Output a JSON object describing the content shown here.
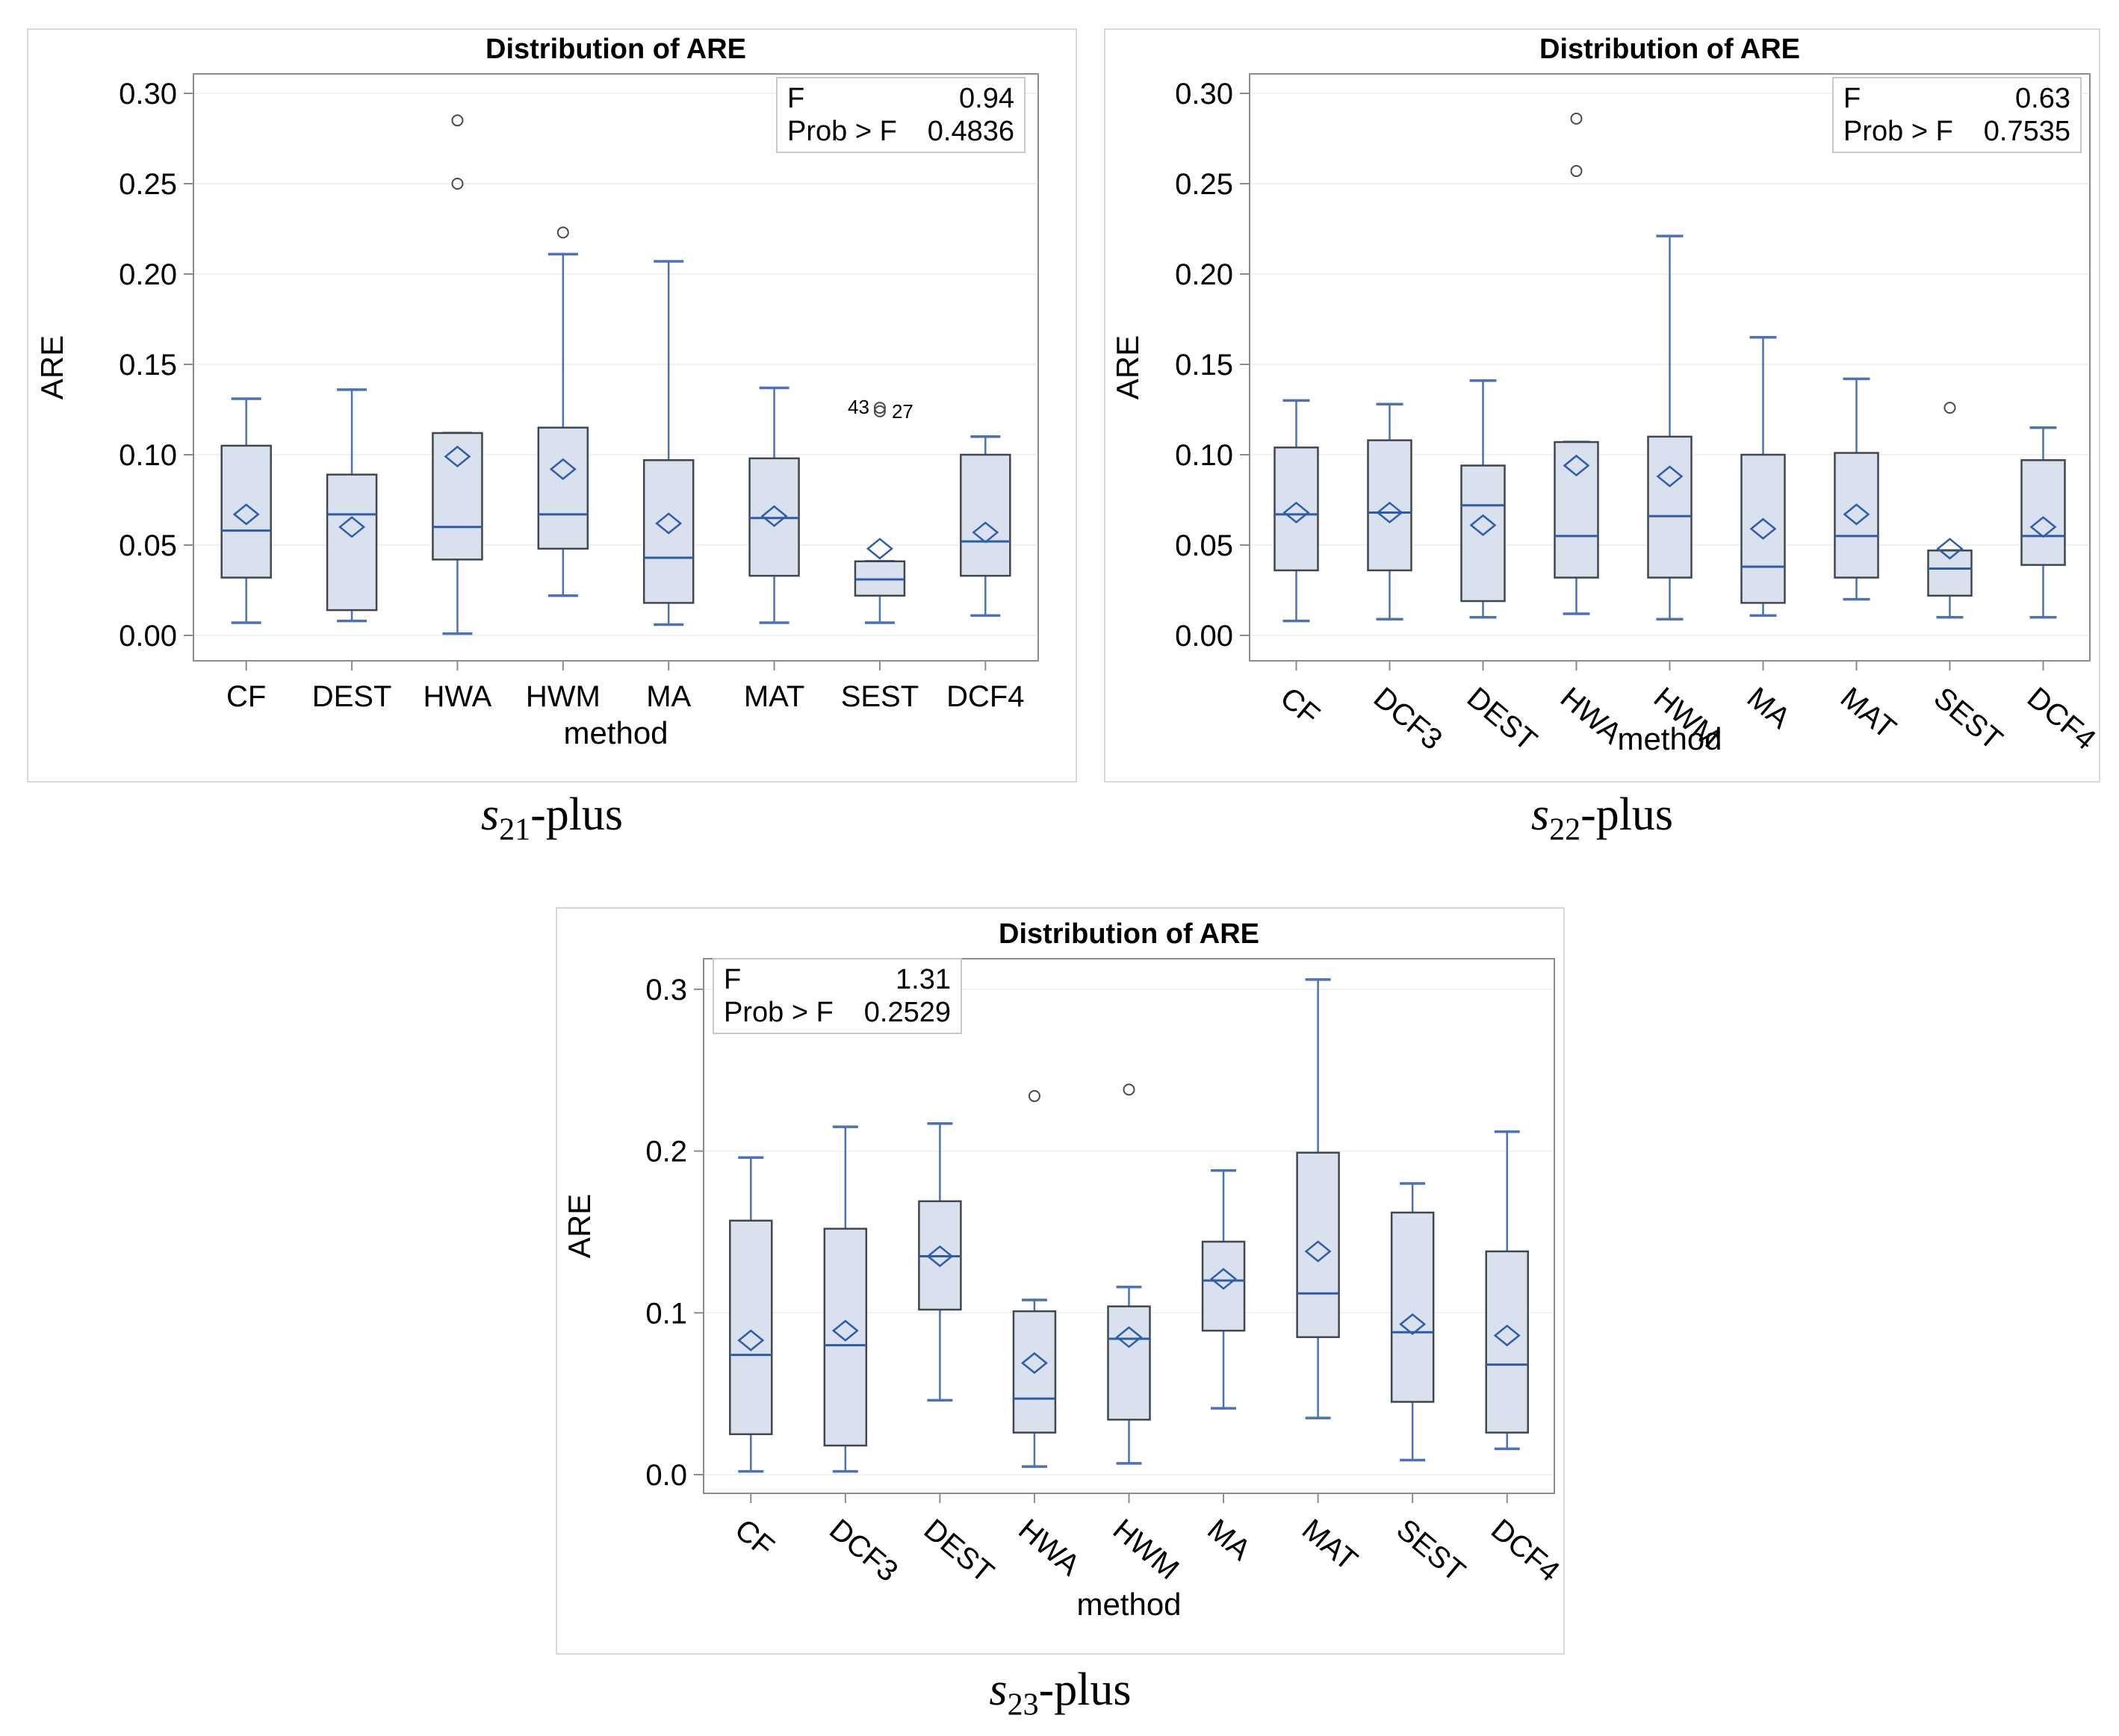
{
  "figure": {
    "panels": [
      {
        "chart_index": 0,
        "caption": {
          "s": "s",
          "sub": "21",
          "rest": "-plus"
        }
      },
      {
        "chart_index": 1,
        "caption": {
          "s": "s",
          "sub": "22",
          "rest": "-plus"
        }
      },
      {
        "chart_index": 2,
        "caption": {
          "s": "s",
          "sub": "23",
          "rest": "-plus"
        }
      }
    ]
  },
  "chart_data": [
    {
      "type": "box",
      "title": "Distribution of ARE",
      "xlabel": "method",
      "ylabel": "ARE",
      "ylim": [
        0,
        0.31
      ],
      "grid": true,
      "x_tick_rotation": 0,
      "yticks": [
        {
          "value": 0.3,
          "label": "0.30"
        },
        {
          "value": 0.25,
          "label": "0.25"
        },
        {
          "value": 0.2,
          "label": "0.20"
        },
        {
          "value": 0.15,
          "label": "0.15"
        },
        {
          "value": 0.1,
          "label": "0.10"
        },
        {
          "value": 0.05,
          "label": "0.05"
        },
        {
          "value": 0.0,
          "label": "0.00"
        }
      ],
      "stats": {
        "position": "top-right",
        "rows": [
          [
            "F",
            "0.94"
          ],
          [
            "Prob > F",
            "0.4836"
          ]
        ]
      },
      "categories": [
        "CF",
        "DEST",
        "HWA",
        "HWM",
        "MA",
        "MAT",
        "SEST",
        "DCF4"
      ],
      "boxes": [
        {
          "category": "CF",
          "whisker_low": 0.007,
          "q1": 0.032,
          "median": 0.058,
          "q3": 0.105,
          "whisker_high": 0.131,
          "mean": 0.067,
          "outliers": []
        },
        {
          "category": "DEST",
          "whisker_low": 0.008,
          "q1": 0.014,
          "median": 0.067,
          "q3": 0.089,
          "whisker_high": 0.136,
          "mean": 0.06,
          "outliers": []
        },
        {
          "category": "HWA",
          "whisker_low": 0.001,
          "q1": 0.042,
          "median": 0.06,
          "q3": 0.112,
          "whisker_high": 0.112,
          "mean": 0.099,
          "outliers": [
            0.285,
            0.25
          ]
        },
        {
          "category": "HWM",
          "whisker_low": 0.022,
          "q1": 0.048,
          "median": 0.067,
          "q3": 0.115,
          "whisker_high": 0.211,
          "mean": 0.092,
          "outliers": [
            0.223
          ]
        },
        {
          "category": "MA",
          "whisker_low": 0.006,
          "q1": 0.018,
          "median": 0.043,
          "q3": 0.097,
          "whisker_high": 0.207,
          "mean": 0.062,
          "outliers": []
        },
        {
          "category": "MAT",
          "whisker_low": 0.007,
          "q1": 0.033,
          "median": 0.065,
          "q3": 0.098,
          "whisker_high": 0.137,
          "mean": 0.066,
          "outliers": []
        },
        {
          "category": "SEST",
          "whisker_low": 0.007,
          "q1": 0.022,
          "median": 0.031,
          "q3": 0.041,
          "whisker_high": 0.041,
          "mean": 0.048,
          "outliers": [
            0.126,
            0.124
          ],
          "outlier_note_left": "43",
          "outlier_note_right": "27"
        },
        {
          "category": "DCF4",
          "whisker_low": 0.011,
          "q1": 0.033,
          "median": 0.052,
          "q3": 0.1,
          "whisker_high": 0.11,
          "mean": 0.057,
          "outliers": []
        }
      ]
    },
    {
      "type": "box",
      "title": "Distribution of ARE",
      "xlabel": "method",
      "ylabel": "ARE",
      "ylim": [
        0,
        0.31
      ],
      "grid": true,
      "x_tick_rotation": 40,
      "yticks": [
        {
          "value": 0.3,
          "label": "0.30"
        },
        {
          "value": 0.25,
          "label": "0.25"
        },
        {
          "value": 0.2,
          "label": "0.20"
        },
        {
          "value": 0.15,
          "label": "0.15"
        },
        {
          "value": 0.1,
          "label": "0.10"
        },
        {
          "value": 0.05,
          "label": "0.05"
        },
        {
          "value": 0.0,
          "label": "0.00"
        }
      ],
      "stats": {
        "position": "top-right",
        "rows": [
          [
            "F",
            "0.63"
          ],
          [
            "Prob > F",
            "0.7535"
          ]
        ]
      },
      "categories": [
        "CF",
        "DCF3",
        "DEST",
        "HWA",
        "HWM",
        "MA",
        "MAT",
        "SEST",
        "DCF4"
      ],
      "boxes": [
        {
          "category": "CF",
          "whisker_low": 0.008,
          "q1": 0.036,
          "median": 0.067,
          "q3": 0.104,
          "whisker_high": 0.13,
          "mean": 0.068,
          "outliers": []
        },
        {
          "category": "DCF3",
          "whisker_low": 0.009,
          "q1": 0.036,
          "median": 0.068,
          "q3": 0.108,
          "whisker_high": 0.128,
          "mean": 0.068,
          "outliers": []
        },
        {
          "category": "DEST",
          "whisker_low": 0.01,
          "q1": 0.019,
          "median": 0.072,
          "q3": 0.094,
          "whisker_high": 0.141,
          "mean": 0.061,
          "outliers": []
        },
        {
          "category": "HWA",
          "whisker_low": 0.012,
          "q1": 0.032,
          "median": 0.055,
          "q3": 0.107,
          "whisker_high": 0.107,
          "mean": 0.094,
          "outliers": [
            0.286,
            0.257
          ]
        },
        {
          "category": "HWM",
          "whisker_low": 0.009,
          "q1": 0.032,
          "median": 0.066,
          "q3": 0.11,
          "whisker_high": 0.221,
          "mean": 0.088,
          "outliers": []
        },
        {
          "category": "MA",
          "whisker_low": 0.011,
          "q1": 0.018,
          "median": 0.038,
          "q3": 0.1,
          "whisker_high": 0.165,
          "mean": 0.059,
          "outliers": []
        },
        {
          "category": "MAT",
          "whisker_low": 0.02,
          "q1": 0.032,
          "median": 0.055,
          "q3": 0.101,
          "whisker_high": 0.142,
          "mean": 0.067,
          "outliers": []
        },
        {
          "category": "SEST",
          "whisker_low": 0.01,
          "q1": 0.022,
          "median": 0.037,
          "q3": 0.047,
          "whisker_high": 0.047,
          "mean": 0.048,
          "outliers": [
            0.126
          ]
        },
        {
          "category": "DCF4",
          "whisker_low": 0.01,
          "q1": 0.039,
          "median": 0.055,
          "q3": 0.097,
          "whisker_high": 0.115,
          "mean": 0.06,
          "outliers": []
        }
      ]
    },
    {
      "type": "box",
      "title": "Distribution of ARE",
      "xlabel": "method",
      "ylabel": "ARE",
      "ylim": [
        0,
        0.32
      ],
      "grid": true,
      "x_tick_rotation": 40,
      "yticks": [
        {
          "value": 0.3,
          "label": "0.3"
        },
        {
          "value": 0.2,
          "label": "0.2"
        },
        {
          "value": 0.1,
          "label": "0.1"
        },
        {
          "value": 0.0,
          "label": "0.0"
        }
      ],
      "stats": {
        "position": "top-left",
        "rows": [
          [
            "F",
            "1.31"
          ],
          [
            "Prob > F",
            "0.2529"
          ]
        ]
      },
      "categories": [
        "CF",
        "DCF3",
        "DEST",
        "HWA",
        "HWM",
        "MA",
        "MAT",
        "SEST",
        "DCF4"
      ],
      "boxes": [
        {
          "category": "CF",
          "whisker_low": 0.002,
          "q1": 0.025,
          "median": 0.074,
          "q3": 0.157,
          "whisker_high": 0.196,
          "mean": 0.083,
          "outliers": []
        },
        {
          "category": "DCF3",
          "whisker_low": 0.002,
          "q1": 0.018,
          "median": 0.08,
          "q3": 0.152,
          "whisker_high": 0.215,
          "mean": 0.089,
          "outliers": []
        },
        {
          "category": "DEST",
          "whisker_low": 0.046,
          "q1": 0.102,
          "median": 0.135,
          "q3": 0.169,
          "whisker_high": 0.217,
          "mean": 0.135,
          "outliers": []
        },
        {
          "category": "HWA",
          "whisker_low": 0.005,
          "q1": 0.026,
          "median": 0.047,
          "q3": 0.101,
          "whisker_high": 0.108,
          "mean": 0.069,
          "outliers": [
            0.234
          ]
        },
        {
          "category": "HWM",
          "whisker_low": 0.007,
          "q1": 0.034,
          "median": 0.084,
          "q3": 0.104,
          "whisker_high": 0.116,
          "mean": 0.085,
          "outliers": [
            0.238
          ]
        },
        {
          "category": "MA",
          "whisker_low": 0.041,
          "q1": 0.089,
          "median": 0.12,
          "q3": 0.144,
          "whisker_high": 0.188,
          "mean": 0.121,
          "outliers": []
        },
        {
          "category": "MAT",
          "whisker_low": 0.035,
          "q1": 0.085,
          "median": 0.112,
          "q3": 0.199,
          "whisker_high": 0.306,
          "mean": 0.138,
          "outliers": []
        },
        {
          "category": "SEST",
          "whisker_low": 0.009,
          "q1": 0.045,
          "median": 0.088,
          "q3": 0.162,
          "whisker_high": 0.18,
          "mean": 0.093,
          "outliers": []
        },
        {
          "category": "DCF4",
          "whisker_low": 0.016,
          "q1": 0.026,
          "median": 0.068,
          "q3": 0.138,
          "whisker_high": 0.212,
          "mean": 0.086,
          "outliers": []
        }
      ]
    }
  ]
}
